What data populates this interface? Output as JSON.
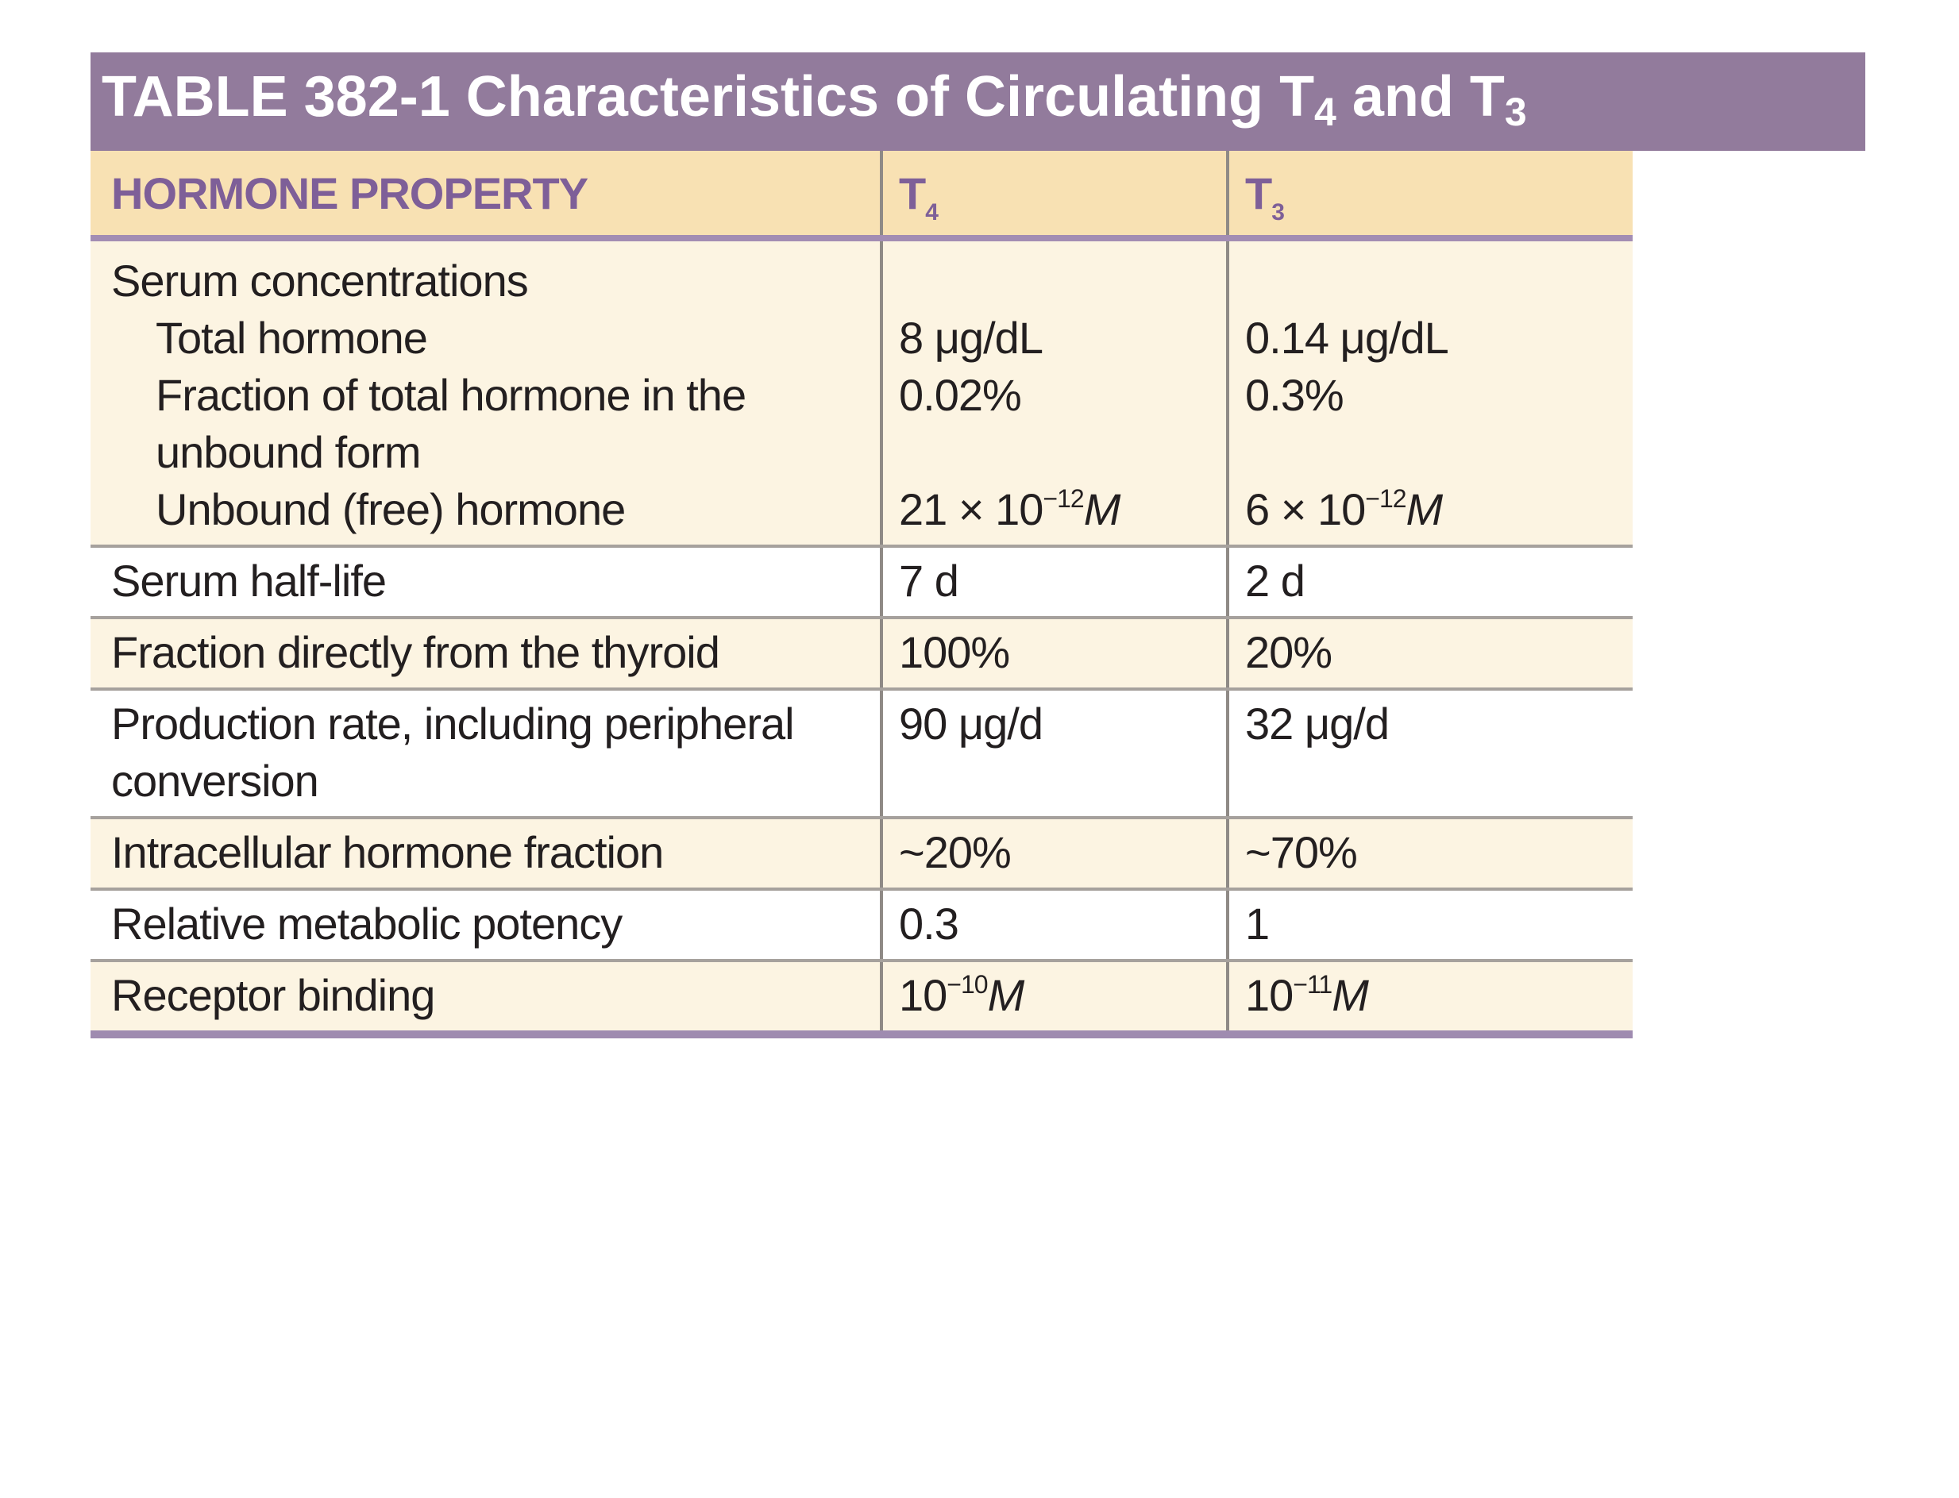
{
  "title": {
    "prefix": "TABLE 382-1 Characteristics of Circulating T",
    "sub1": "4",
    "middle": " and T",
    "sub2": "3"
  },
  "table": {
    "headers": {
      "property": "HORMONE PROPERTY",
      "t4_base": "T",
      "t4_sub": "4",
      "t3_base": "T",
      "t3_sub": "3"
    },
    "serum": {
      "label": "Serum concentrations",
      "total_label": "Total hormone",
      "total_t4": "8 μg/dL",
      "total_t3": "0.14 μg/dL",
      "fraction_label_line1": "Fraction of total hormone in the",
      "fraction_label_line2": "unbound form",
      "fraction_t4": "0.02%",
      "fraction_t3": "0.3%",
      "unbound_label": "Unbound (free) hormone",
      "unbound_t4_base": "21 × 10",
      "unbound_t4_exp": "−12",
      "unbound_t4_unit": "M",
      "unbound_t3_base": "6 × 10",
      "unbound_t3_exp": "−12",
      "unbound_t3_unit": "M"
    },
    "rows": [
      {
        "label": "Serum half-life",
        "t4": "7 d",
        "t3": "2 d"
      },
      {
        "label": "Fraction directly from the thyroid",
        "t4": "100%",
        "t3": "20%"
      },
      {
        "label_line1": "Production rate, including peripheral",
        "label_line2": "conversion",
        "t4": "90 μg/d",
        "t3": "32 μg/d"
      },
      {
        "label": "Intracellular hormone fraction",
        "t4": "~20%",
        "t3": "~70%"
      },
      {
        "label": "Relative metabolic potency",
        "t4": "0.3",
        "t3": "1"
      }
    ],
    "receptor": {
      "label": "Receptor binding",
      "t4_base": "10",
      "t4_exp": "−10",
      "t4_unit": "M",
      "t3_base": "10",
      "t3_exp": "−11",
      "t3_unit": "M"
    }
  },
  "colors": {
    "title_background": "#927b9c",
    "header_background": "#f8e1b3",
    "header_text": "#7e5f98",
    "shaded_row": "#fcf4e2"
  }
}
